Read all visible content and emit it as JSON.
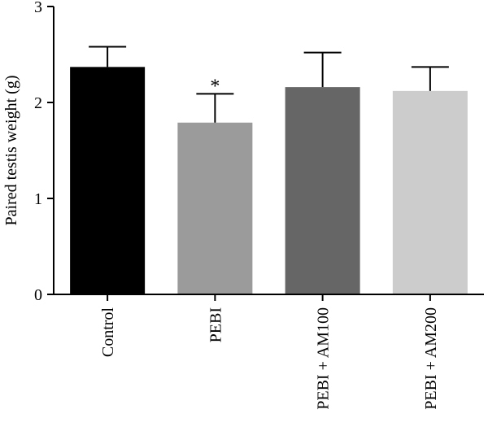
{
  "chart_data": {
    "type": "bar",
    "title": "",
    "xlabel": "",
    "ylabel": "Paired testis weight (g)",
    "ylim": [
      0,
      3
    ],
    "yticks": [
      "0",
      "1",
      "2",
      "3"
    ],
    "grid": false,
    "categories": [
      "Control",
      "PEBI",
      "PEBI + AM100",
      "PEBI + AM200"
    ],
    "values": [
      2.37,
      1.79,
      2.16,
      2.12
    ],
    "errors": [
      0.21,
      0.3,
      0.36,
      0.25
    ],
    "colors": [
      "#000000",
      "#9b9b9b",
      "#666666",
      "#cccccc"
    ],
    "annotations": [
      "",
      "*",
      "",
      ""
    ]
  }
}
